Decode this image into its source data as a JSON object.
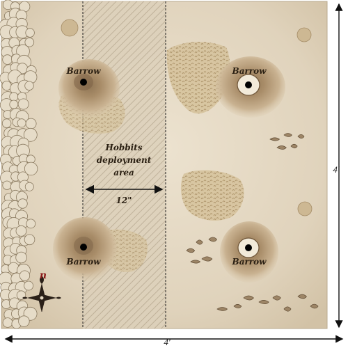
{
  "map": {
    "barrows": [
      {
        "label": "Barrow"
      },
      {
        "label": "Barrow"
      },
      {
        "label": "Barrow"
      },
      {
        "label": "Barrow"
      }
    ],
    "deployment": {
      "line1": "Hobbits",
      "line2": "deployment",
      "line3": "area",
      "distance": "12\""
    },
    "dimensions": {
      "width": "4'",
      "height": "4'"
    },
    "compass": {
      "north_marker": "n",
      "icon": "compass-rose-icon"
    },
    "colors": {
      "parchment": "#e3d7c2",
      "hill": "#b59a76",
      "scrub": "#c9b48c",
      "north": "#8b1a1a"
    }
  }
}
